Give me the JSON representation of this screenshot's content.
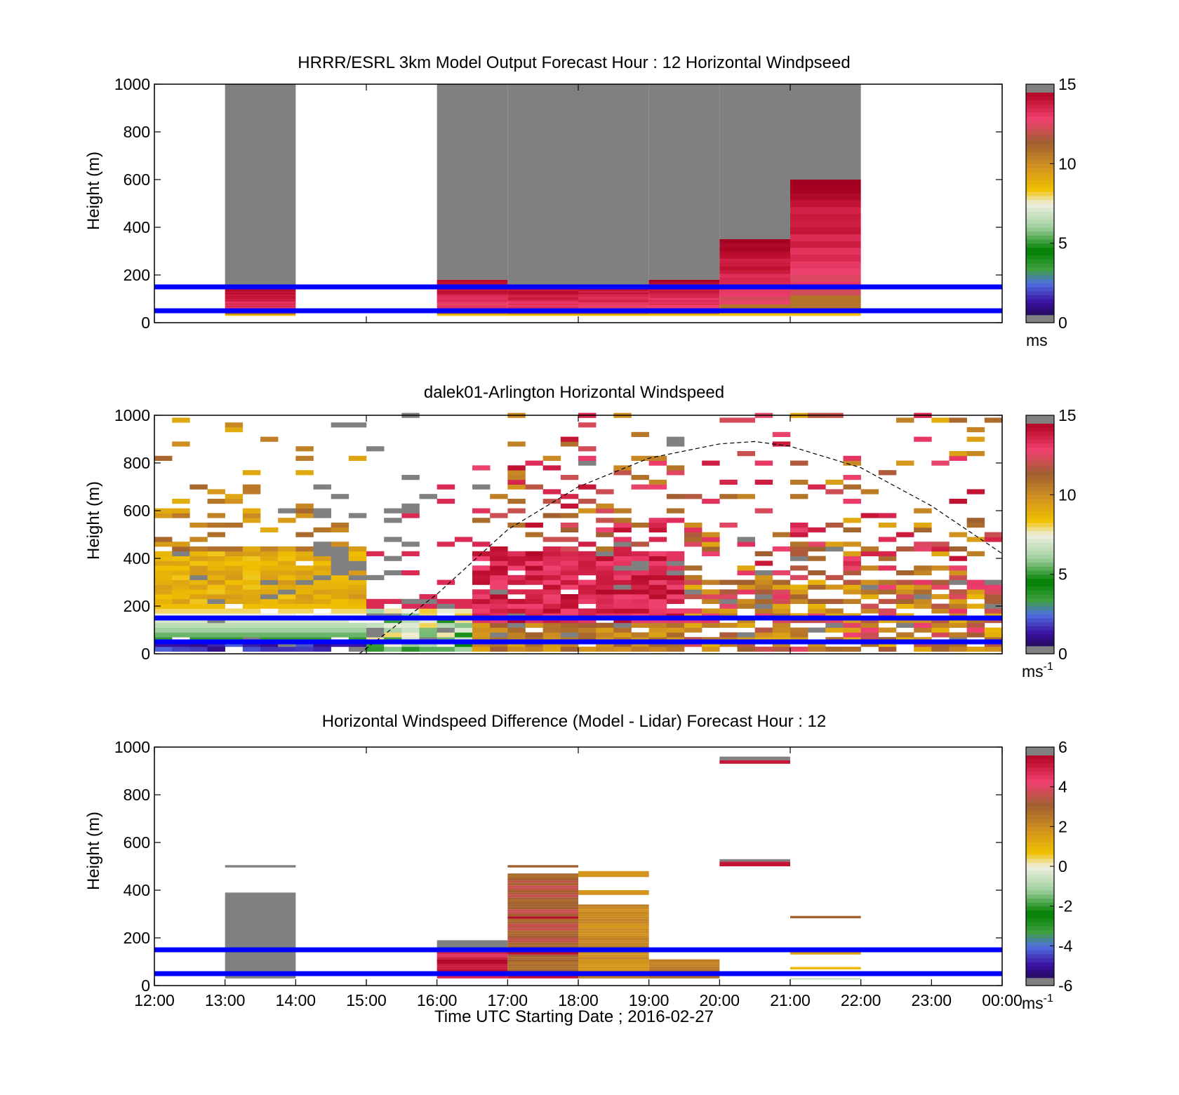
{
  "colors": {
    "overlay_line": "#0000ff",
    "axes": "#000000",
    "missing_gray": "#808080",
    "model_colormap": [
      "#202060",
      "#3030c0",
      "#6080e0",
      "#40a040",
      "#008000",
      "#e0e0e0",
      "#f0c000",
      "#d09020",
      "#a06030",
      "#c04060",
      "#f04070",
      "#a00020",
      "#808080"
    ]
  },
  "chart_data": [
    {
      "type": "heatmap",
      "title": "HRRR/ESRL 3km Model Output   Forecast Hour : 12 Horizontal Windpseed",
      "xlabel": "",
      "ylabel": "Height (m)",
      "xlim_hours": [
        12,
        24
      ],
      "ylim": [
        0,
        1000
      ],
      "yticks": [
        "0",
        "200",
        "400",
        "600",
        "800",
        "1000"
      ],
      "colorbar": {
        "ticks": [
          "0",
          "5",
          "10",
          "15"
        ],
        "range": [
          0,
          15
        ],
        "unit": "ms"
      },
      "overlay_lines_height_m": [
        50,
        150
      ],
      "columns": [
        {
          "start": 13,
          "end": 14,
          "top_m": 1000,
          "data_top_m": 150
        },
        {
          "start": 16,
          "end": 17,
          "top_m": 1000,
          "data_top_m": 180
        },
        {
          "start": 17,
          "end": 18,
          "top_m": 1000,
          "data_top_m": 160
        },
        {
          "start": 18,
          "end": 19,
          "top_m": 1000,
          "data_top_m": 160
        },
        {
          "start": 19,
          "end": 20,
          "top_m": 1000,
          "data_top_m": 180
        },
        {
          "start": 20,
          "end": 21,
          "top_m": 1000,
          "data_top_m": 350
        },
        {
          "start": 21,
          "end": 22,
          "top_m": 1000,
          "data_top_m": 600
        }
      ]
    },
    {
      "type": "heatmap",
      "title": "dalek01-Arlington  Horizontal Windspeed",
      "xlabel": "",
      "ylabel": "Height (m)",
      "xlim_hours": [
        12,
        24
      ],
      "ylim": [
        0,
        1000
      ],
      "yticks": [
        "0",
        "200",
        "400",
        "600",
        "800",
        "1000"
      ],
      "colorbar": {
        "ticks": [
          "0",
          "5",
          "10",
          "15"
        ],
        "range": [
          0,
          15
        ],
        "unit": "ms",
        "unit_sup": "-1"
      },
      "overlay_lines_height_m": [
        50,
        150
      ],
      "boundary_layer_curve": {
        "x_hours": [
          14.9,
          16,
          17,
          18,
          19,
          20,
          20.5,
          21,
          22,
          23,
          24
        ],
        "height_m": [
          0,
          250,
          520,
          700,
          820,
          880,
          890,
          870,
          780,
          620,
          420
        ]
      }
    },
    {
      "type": "heatmap",
      "title": "Horizontal Windspeed Difference (Model - Lidar) Forecast Hour : 12",
      "xlabel": "Time UTC  Starting Date ; 2016-02-27",
      "ylabel": "Height (m)",
      "xlim_hours": [
        12,
        24
      ],
      "ylim": [
        0,
        1000
      ],
      "yticks": [
        "0",
        "200",
        "400",
        "600",
        "800",
        "1000"
      ],
      "xticks": [
        "12:00",
        "13:00",
        "14:00",
        "15:00",
        "16:00",
        "17:00",
        "18:00",
        "19:00",
        "20:00",
        "21:00",
        "22:00",
        "23:00",
        "00:00"
      ],
      "colorbar": {
        "ticks": [
          "-6",
          "-4",
          "-2",
          "0",
          "2",
          "4",
          "6"
        ],
        "range": [
          -6,
          6
        ],
        "unit": "ms",
        "unit_sup": "-1"
      },
      "overlay_lines_height_m": [
        50,
        150
      ]
    }
  ]
}
